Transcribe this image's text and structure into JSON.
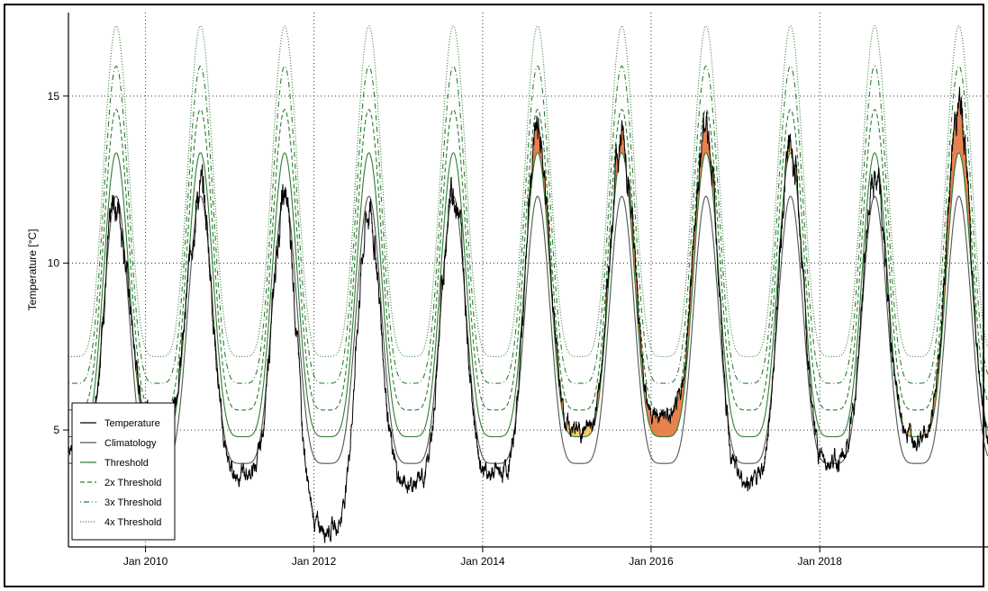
{
  "chart_data": {
    "type": "line",
    "title": "",
    "xlabel": "",
    "ylabel": "Temperature [°C]",
    "x_range": [
      "2009-02-01",
      "2019-12-31"
    ],
    "ylim": [
      1.5,
      17.5
    ],
    "grid": true,
    "legend_position": "bottom-left",
    "x_ticks": [
      "Jan 2010",
      "Jan 2012",
      "Jan 2014",
      "Jan 2016",
      "Jan 2018"
    ],
    "y_ticks": [
      5,
      10,
      15
    ],
    "seasonal_cycle": {
      "period_years": 1,
      "peak_date": "late August",
      "climatology": {
        "min": 4.0,
        "max": 12.0
      },
      "threshold": {
        "min": 4.8,
        "max": 13.3
      },
      "threshold_2x": {
        "min": 5.6,
        "max": 14.6
      },
      "threshold_3x": {
        "min": 6.4,
        "max": 15.9
      },
      "threshold_4x": {
        "min": 7.2,
        "max": 17.1
      }
    },
    "temperature_season_extremes": [
      {
        "season": "2009",
        "max": 11.8
      },
      {
        "season": "2009/10 winter",
        "min": 5.5
      },
      {
        "season": "2010",
        "max": 12.2
      },
      {
        "season": "2010/11 winter",
        "min": 3.7
      },
      {
        "season": "2011",
        "max": 11.9
      },
      {
        "season": "2011/12 winter",
        "min": 2.1
      },
      {
        "season": "2012",
        "max": 11.5
      },
      {
        "season": "2012/13 winter",
        "min": 3.4
      },
      {
        "season": "2013",
        "max": 12.3
      },
      {
        "season": "2013/14 winter",
        "min": 3.7
      },
      {
        "season": "2014",
        "max": 13.9
      },
      {
        "season": "2014/15 winter",
        "min": 5.0
      },
      {
        "season": "2015",
        "max": 13.8
      },
      {
        "season": "2015/16 winter",
        "min": 5.4
      },
      {
        "season": "2016",
        "max": 14.2
      },
      {
        "season": "2016/17 winter",
        "min": 3.5
      },
      {
        "season": "2017",
        "max": 13.4
      },
      {
        "season": "2017/18 winter",
        "min": 4.1
      },
      {
        "season": "2018",
        "max": 12.5
      },
      {
        "season": "2018/19 winter",
        "min": 4.9
      },
      {
        "season": "2019",
        "max": 14.7
      }
    ],
    "series": [
      {
        "name": "Temperature",
        "color": "#000000",
        "style": "solid"
      },
      {
        "name": "Climatology",
        "color": "#555555",
        "style": "solid"
      },
      {
        "name": "Threshold",
        "color": "#2e7d32",
        "style": "solid"
      },
      {
        "name": "2x Threshold",
        "color": "#2e7d32",
        "style": "dashed"
      },
      {
        "name": "3x Threshold",
        "color": "#2e7d32",
        "style": "dotdash"
      },
      {
        "name": "4x Threshold",
        "color": "#2e7d32",
        "style": "dotted"
      }
    ],
    "heatwave_fill_colors": {
      "moderate": "#f9c25a",
      "strong": "#e4733a"
    }
  }
}
